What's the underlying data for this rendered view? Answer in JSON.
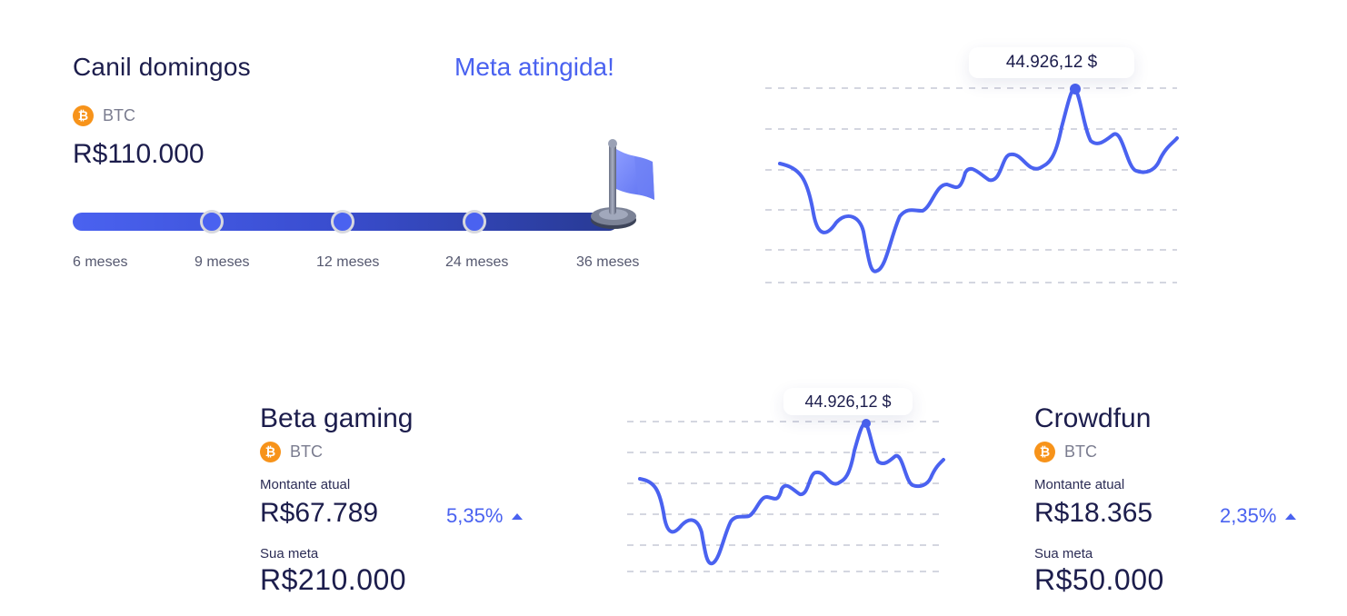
{
  "colors": {
    "accent": "#4a62f0",
    "text": "#1c1d4c",
    "muted": "#7a7c8f",
    "btc": "#f7931a"
  },
  "goal_card": {
    "name": "Canil domingos",
    "status": "Meta atingida!",
    "coin_icon": "bitcoin-icon",
    "coin": "BTC",
    "amount": "R$110.000",
    "milestones": [
      "6 meses",
      "9 meses",
      "12 meses",
      "24 meses",
      "36 meses"
    ],
    "flag_icon": "flag-icon",
    "chart_tooltip": "44.926,12 $"
  },
  "cards": [
    {
      "name": "Beta gaming",
      "coin": "BTC",
      "current_label": "Montante atual",
      "current_amount": "R$67.789",
      "change": "5,35%",
      "goal_label": "Sua meta",
      "goal_amount": "R$210.000",
      "chart_tooltip": "44.926,12 $"
    },
    {
      "name": "Crowdfun",
      "coin": "BTC",
      "current_label": "Montante atual",
      "current_amount": "R$18.365",
      "change": "2,35%",
      "goal_label": "Sua meta",
      "goal_amount": "R$50.000"
    }
  ]
}
